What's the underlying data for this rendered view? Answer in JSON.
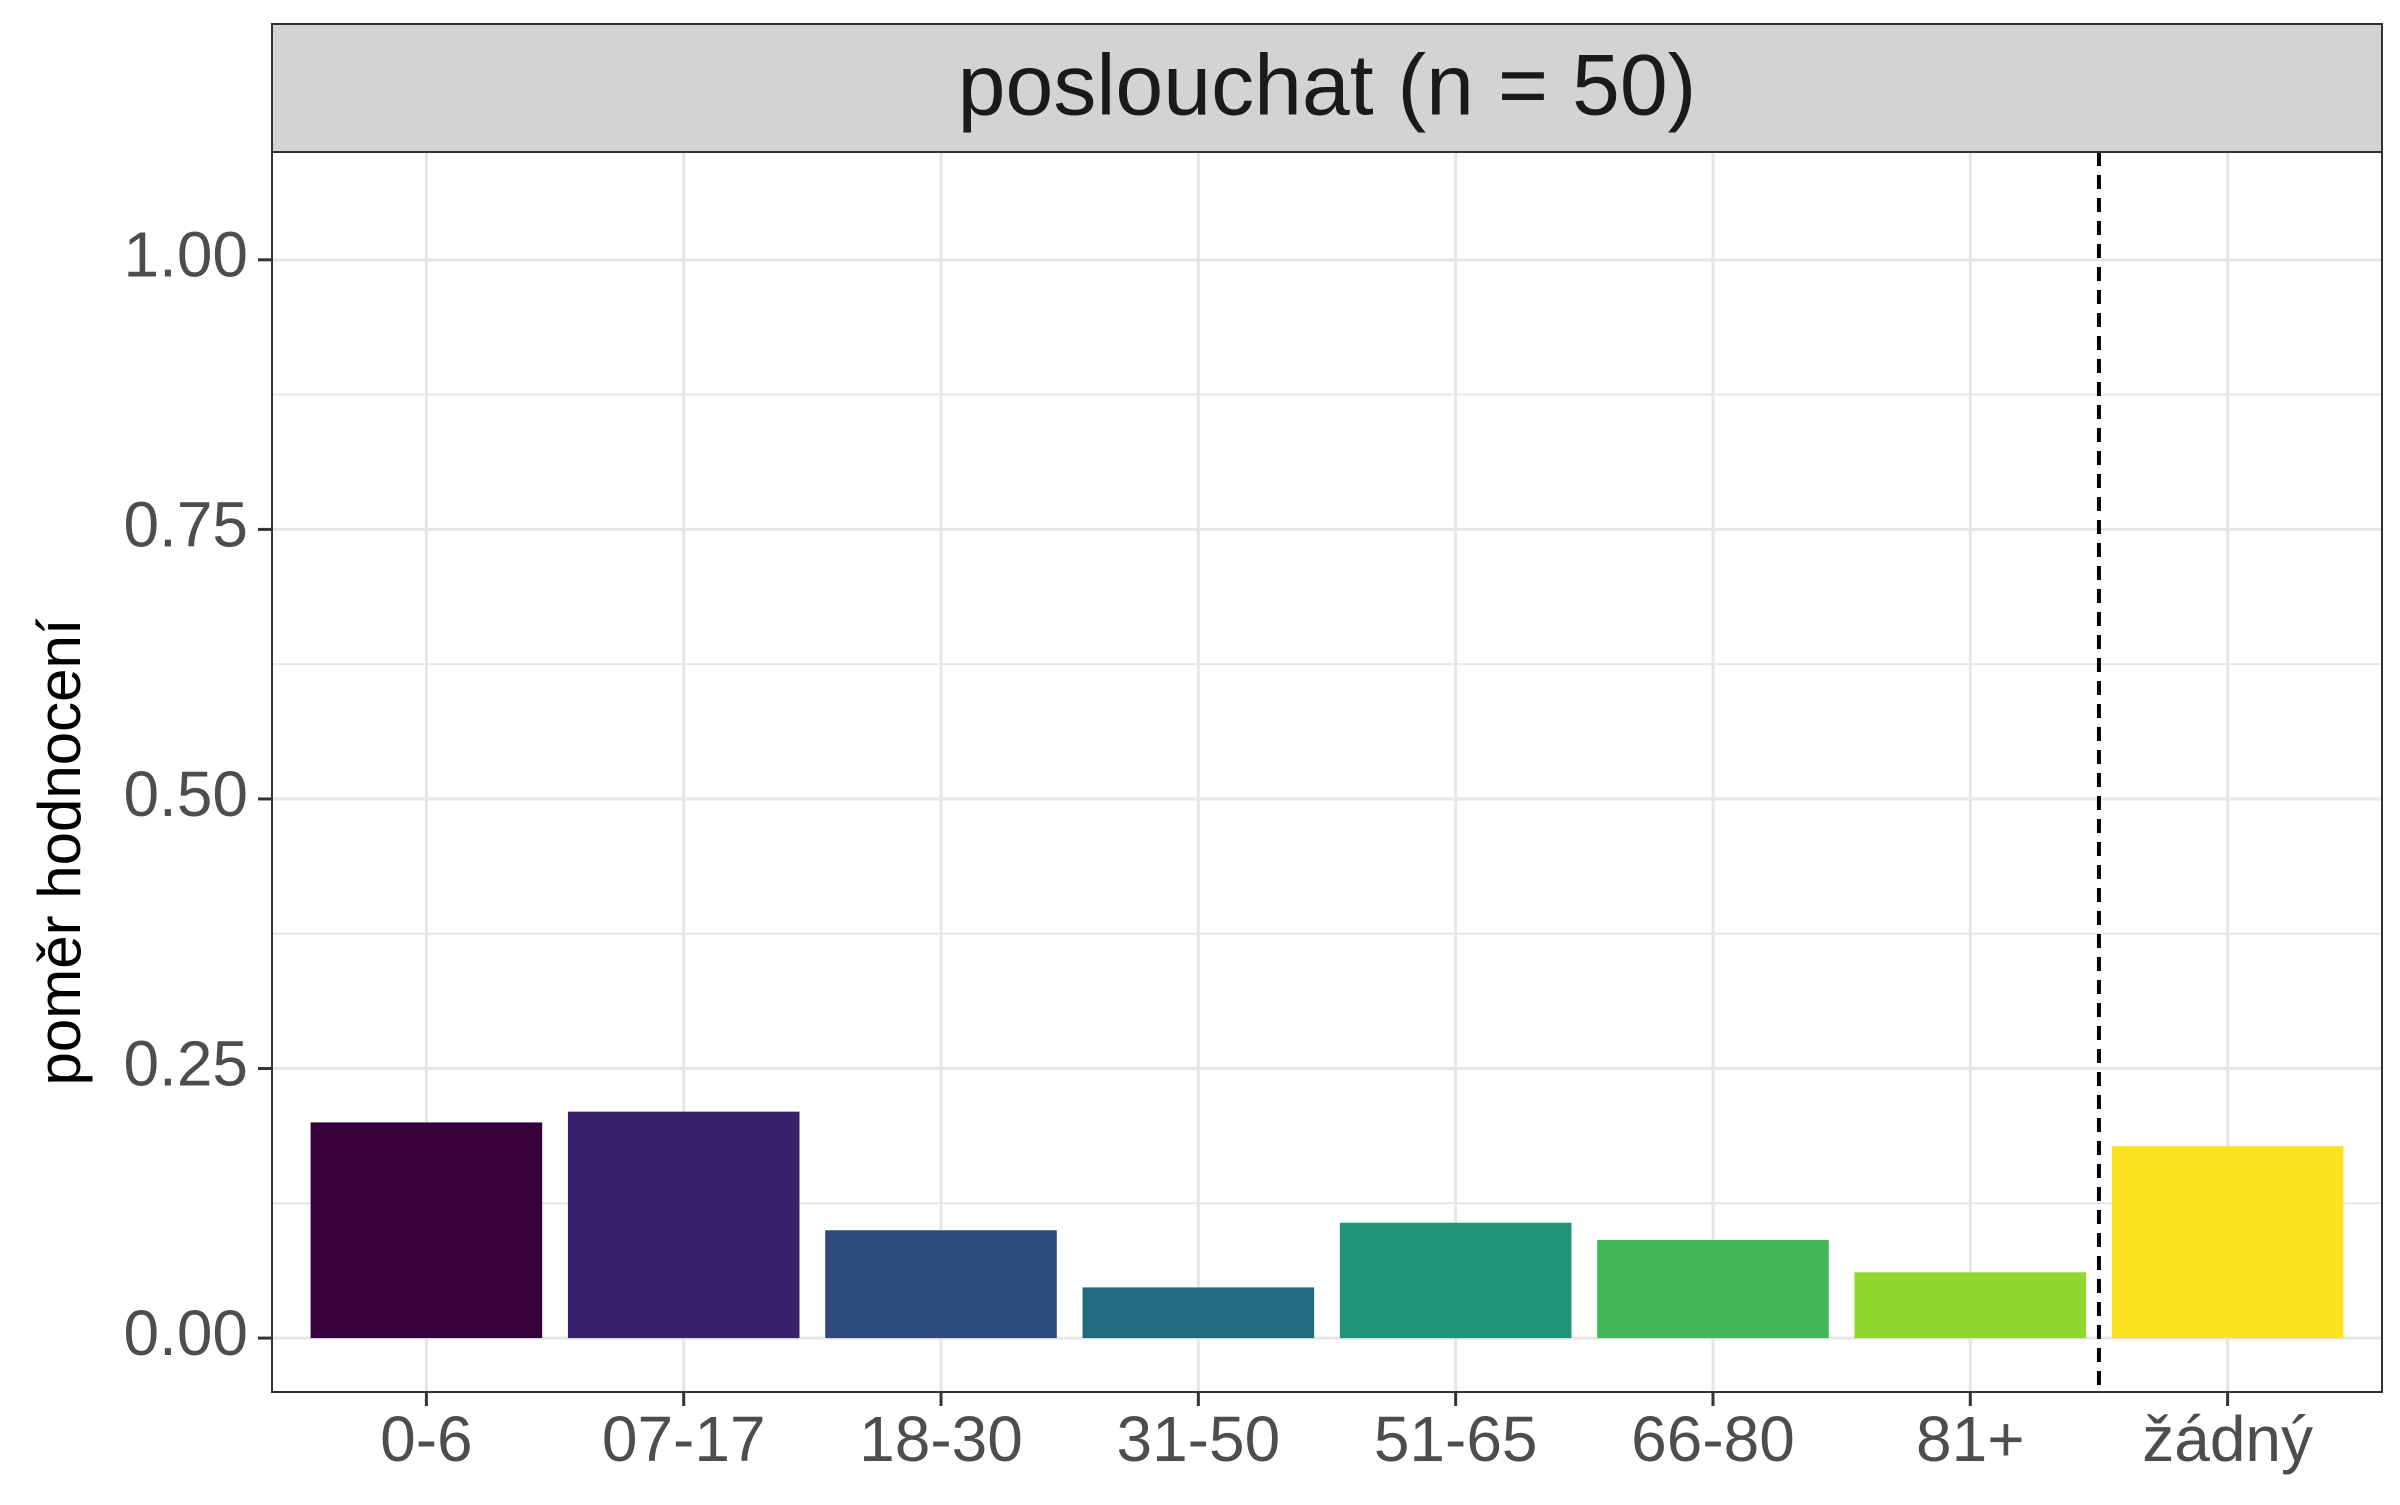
{
  "chart_data": {
    "type": "bar",
    "facet_title": "poslouchat (n = 50)",
    "title": "",
    "xlabel": "",
    "ylabel": "poměr hodnocení",
    "categories": [
      "0-6",
      "07-17",
      "18-30",
      "31-50",
      "51-65",
      "66-80",
      "81+",
      "žádný"
    ],
    "values": [
      0.2,
      0.21,
      0.1,
      0.047,
      0.107,
      0.091,
      0.061,
      0.178
    ],
    "colors": [
      "#36003D",
      "#38216A",
      "#2C4A7A",
      "#226A7E",
      "#229477",
      "#41B758",
      "#8FD62F",
      "#FAE41F"
    ],
    "ylim": [
      -0.05,
      1.1
    ],
    "yticks": [
      0.0,
      0.25,
      0.5,
      0.75,
      1.0
    ],
    "ytick_labels": [
      "0.00",
      "0.25",
      "0.50",
      "0.75",
      "1.00"
    ],
    "reference_line_after_category": "81+",
    "reference_line_style": "dashed",
    "grid": true,
    "legend": "none",
    "strip_color": "#D3D3D3",
    "gridline_color": "#E6E6E6"
  }
}
